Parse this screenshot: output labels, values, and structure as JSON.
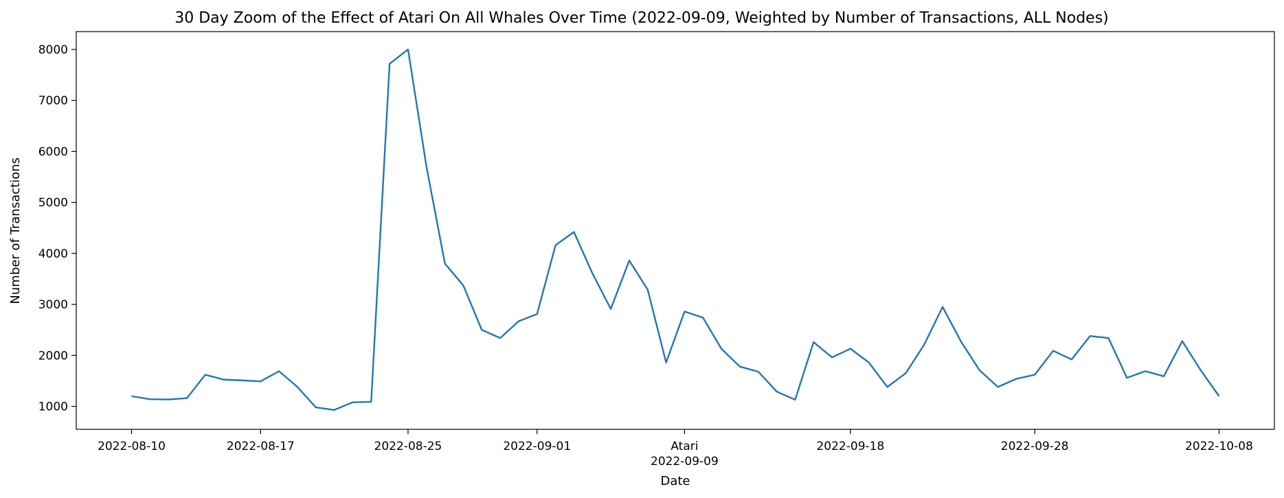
{
  "chart_data": {
    "type": "line",
    "title": "30 Day Zoom of the Effect of Atari On All Whales Over Time (2022-09-09, Weighted by Number of Transactions, ALL Nodes)",
    "xlabel": "Date",
    "ylabel": "Number of Transactions",
    "x_type": "date",
    "xlim": [
      "2022-08-07",
      "2022-10-11"
    ],
    "ylim": [
      550,
      8350
    ],
    "yticks": [
      1000,
      2000,
      3000,
      4000,
      5000,
      6000,
      7000,
      8000
    ],
    "xticks": [
      {
        "date": "2022-08-10",
        "label": "2022-08-10"
      },
      {
        "date": "2022-08-17",
        "label": "2022-08-17"
      },
      {
        "date": "2022-08-25",
        "label": "2022-08-25"
      },
      {
        "date": "2022-09-01",
        "label": "2022-09-01"
      },
      {
        "date": "2022-09-09",
        "label": "2022-09-09",
        "annotation": "Atari"
      },
      {
        "date": "2022-09-18",
        "label": "2022-09-18"
      },
      {
        "date": "2022-09-28",
        "label": "2022-09-28"
      },
      {
        "date": "2022-10-08",
        "label": "2022-10-08"
      }
    ],
    "grid": false,
    "line_color": "#1f77b4",
    "series": [
      {
        "x": [
          "2022-08-10",
          "2022-08-11",
          "2022-08-12",
          "2022-08-13",
          "2022-08-14",
          "2022-08-15",
          "2022-08-16",
          "2022-08-17",
          "2022-08-18",
          "2022-08-19",
          "2022-08-20",
          "2022-08-21",
          "2022-08-22",
          "2022-08-23",
          "2022-08-24",
          "2022-08-25",
          "2022-08-26",
          "2022-08-27",
          "2022-08-28",
          "2022-08-29",
          "2022-08-30",
          "2022-08-31",
          "2022-09-01",
          "2022-09-02",
          "2022-09-03",
          "2022-09-04",
          "2022-09-05",
          "2022-09-06",
          "2022-09-07",
          "2022-09-08",
          "2022-09-09",
          "2022-09-10",
          "2022-09-11",
          "2022-09-12",
          "2022-09-13",
          "2022-09-14",
          "2022-09-15",
          "2022-09-16",
          "2022-09-17",
          "2022-09-18",
          "2022-09-19",
          "2022-09-20",
          "2022-09-21",
          "2022-09-22",
          "2022-09-23",
          "2022-09-24",
          "2022-09-25",
          "2022-09-26",
          "2022-09-27",
          "2022-09-28",
          "2022-09-29",
          "2022-09-30",
          "2022-10-01",
          "2022-10-02",
          "2022-10-03",
          "2022-10-04",
          "2022-10-05",
          "2022-10-06",
          "2022-10-07",
          "2022-10-08"
        ],
        "values": [
          1200,
          1140,
          1135,
          1160,
          1620,
          1525,
          1510,
          1490,
          1690,
          1380,
          980,
          930,
          1080,
          1090,
          7720,
          8000,
          5700,
          3800,
          3370,
          2500,
          2340,
          2670,
          2810,
          4160,
          4420,
          3610,
          2910,
          3860,
          3290,
          1860,
          2860,
          2740,
          2130,
          1780,
          1680,
          1290,
          1130,
          2260,
          1960,
          2130,
          1860,
          1380,
          1650,
          2210,
          2950,
          2270,
          1710,
          1380,
          1540,
          1620,
          2090,
          1920,
          2380,
          2340,
          1560,
          1690,
          1590,
          2280,
          1710,
          1200
        ]
      }
    ]
  }
}
